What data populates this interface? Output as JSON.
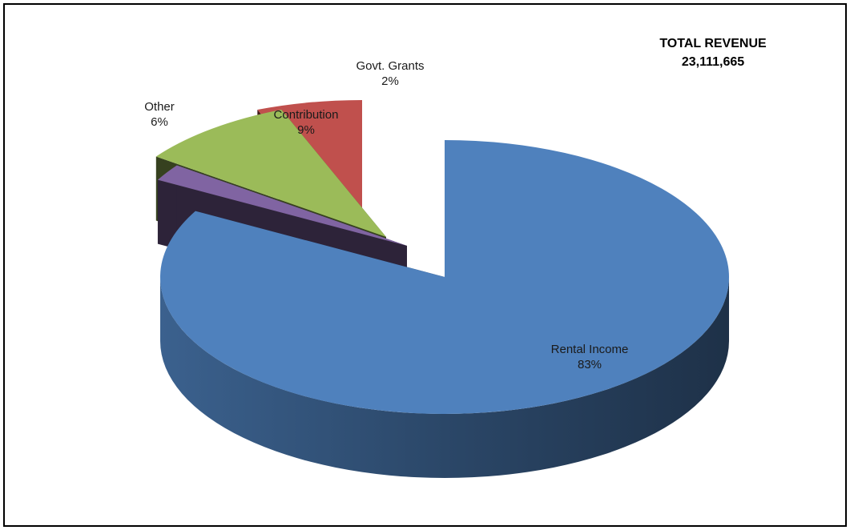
{
  "header": {
    "total_label": "TOTAL REVENUE",
    "total_value": "23,111,665"
  },
  "chart_data": {
    "type": "pie",
    "style": "3d-exploded",
    "title": "TOTAL REVENUE",
    "subtitle": "23,111,665",
    "slices": [
      {
        "name": "Rental Income",
        "percent_label": "83%",
        "value": 83,
        "color": "#4f81bd"
      },
      {
        "name": "Govt. Grants",
        "percent_label": "2%",
        "value": 2,
        "color": "#8064a2"
      },
      {
        "name": "Contribution",
        "percent_label": "9%",
        "value": 9,
        "color": "#9bbb59"
      },
      {
        "name": "Other",
        "percent_label": "6%",
        "value": 6,
        "color": "#c0504d"
      }
    ],
    "legend": "none",
    "data_labels": "category-and-percent"
  }
}
